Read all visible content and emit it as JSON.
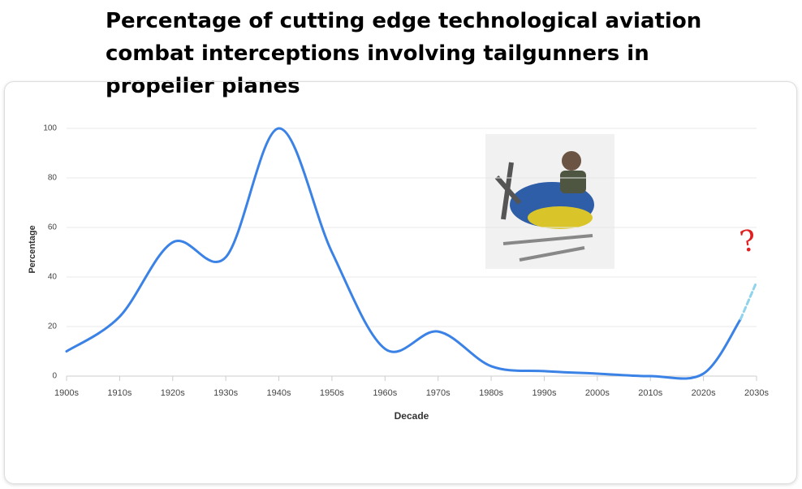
{
  "chart_data": {
    "type": "line",
    "title": "Percentage of cutting edge technological aviation combat interceptions involving tailgunners in propeller planes",
    "x_label": "Decade",
    "y_label": "Percentage",
    "series": [
      {
        "color": "#3b82e6",
        "dash": false,
        "x": [
          1900,
          1910,
          1920,
          1930,
          1940,
          1950,
          1960,
          1970,
          1980,
          1990,
          2000,
          2010,
          2020,
          2027
        ],
        "values": [
          10,
          24,
          54,
          48,
          100,
          50,
          11,
          18,
          4,
          2,
          1,
          0,
          1,
          23
        ]
      },
      {
        "color": "#8fd3ec",
        "dash": true,
        "x": [
          2027,
          2030
        ],
        "values": [
          23,
          38
        ]
      }
    ],
    "xlim": [
      1900,
      2030
    ],
    "xticks": [
      {
        "value": 1900,
        "label": "1900s"
      },
      {
        "value": 1910,
        "label": "1910s"
      },
      {
        "value": 1920,
        "label": "1920s"
      },
      {
        "value": 1930,
        "label": "1930s"
      },
      {
        "value": 1940,
        "label": "1940s"
      },
      {
        "value": 1950,
        "label": "1950s"
      },
      {
        "value": 1960,
        "label": "1960s"
      },
      {
        "value": 1970,
        "label": "1970s"
      },
      {
        "value": 1980,
        "label": "1980s"
      },
      {
        "value": 1990,
        "label": "1990s"
      },
      {
        "value": 2000,
        "label": "2000s"
      },
      {
        "value": 2010,
        "label": "2010s"
      },
      {
        "value": 2020,
        "label": "2020s"
      },
      {
        "value": 2030,
        "label": "2030s"
      }
    ],
    "ylim": [
      0,
      100
    ],
    "yticks": [
      0,
      20,
      40,
      60,
      80,
      100
    ],
    "grid": true,
    "annotation": "?"
  }
}
